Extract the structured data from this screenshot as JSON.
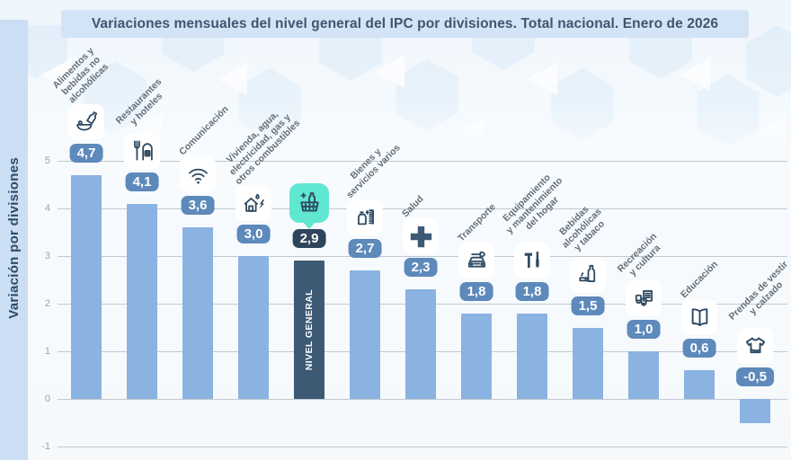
{
  "header": {
    "title": "Variaciones mensuales del nivel general del IPC por divisiones. Total nacional. Enero de 2026"
  },
  "y_axis": {
    "label": "Variación por divisiones",
    "tick_labels": [
      "5",
      "4",
      "3",
      "2",
      "1",
      "0",
      "-1"
    ]
  },
  "chart_data": {
    "type": "bar",
    "title": "Variaciones mensuales del nivel general del IPC por divisiones. Total nacional. Enero de 2026",
    "xlabel": "",
    "ylabel": "Variación por divisiones",
    "ylim": [
      -1.3,
      5.8
    ],
    "yticks": [
      5,
      4,
      3,
      2,
      1,
      0,
      -1
    ],
    "grid": true,
    "legend_position": "none",
    "value_decimal_separator": ",",
    "highlight_category": "Nivel general",
    "categories": [
      "Alimentos y bebidas no alcohólicas",
      "Restaurantes y hoteles",
      "Comunicación",
      "Vivienda, agua, electricidad, gas y otros combustibles",
      "Nivel general",
      "Bienes y servicios varios",
      "Salud",
      "Transporte",
      "Equipamiento y mantenimiento del hogar",
      "Bebidas alcohólicas y tabaco",
      "Recreación y cultura",
      "Educación",
      "Prendas de vestir y calzado"
    ],
    "values": [
      4.7,
      4.1,
      3.6,
      3.0,
      2.9,
      2.7,
      2.3,
      1.8,
      1.8,
      1.5,
      1.0,
      0.6,
      -0.5
    ],
    "bars": [
      {
        "label": "Alimentos y\nbebidas no\nalcohólicas",
        "value": 4.7,
        "display": "4,7",
        "icon": "food-drink-icon",
        "highlight": false
      },
      {
        "label": "Restaurantes\ny hoteles",
        "value": 4.1,
        "display": "4,1",
        "icon": "restaurant-hotel-icon",
        "highlight": false
      },
      {
        "label": "Comunicación",
        "value": 3.6,
        "display": "3,6",
        "icon": "wifi-icon",
        "highlight": false
      },
      {
        "label": "Vivienda, agua,\nelectricidad, gas y\notros combustibles",
        "value": 3.0,
        "display": "3,0",
        "icon": "housing-utilities-icon",
        "highlight": false
      },
      {
        "label": "",
        "bar_text": "NIVEL GENERAL",
        "value": 2.9,
        "display": "2,9",
        "icon": "shopping-basket-icon",
        "highlight": true
      },
      {
        "label": "Bienes y\nservicios varios",
        "value": 2.7,
        "display": "2,7",
        "icon": "goods-services-icon",
        "highlight": false
      },
      {
        "label": "Salud",
        "value": 2.3,
        "display": "2,3",
        "icon": "health-cross-icon",
        "highlight": false
      },
      {
        "label": "Transporte",
        "value": 1.8,
        "display": "1,8",
        "icon": "transport-icon",
        "highlight": false
      },
      {
        "label": "Equipamiento\ny mantenimiento\ndel hogar",
        "value": 1.8,
        "display": "1,8",
        "icon": "home-equipment-icon",
        "highlight": false
      },
      {
        "label": "Bebidas\nalcohólicas\ny tabaco",
        "value": 1.5,
        "display": "1,5",
        "icon": "alcohol-tobacco-icon",
        "highlight": false
      },
      {
        "label": "Recreación\ny cultura",
        "value": 1.0,
        "display": "1,0",
        "icon": "recreation-culture-icon",
        "highlight": false
      },
      {
        "label": "Educación",
        "value": 0.6,
        "display": "0,6",
        "icon": "education-icon",
        "highlight": false
      },
      {
        "label": "Prendas de vestir\ny calzado",
        "value": -0.5,
        "display": "-0,5",
        "icon": "clothing-icon",
        "highlight": false
      }
    ]
  },
  "colors": {
    "bar": "#8ab3e1",
    "bar_highlight": "#3d5a74",
    "badge": "#5d89bb",
    "badge_highlight": "#2f455c",
    "bubble": "#60e7d2",
    "icon_stroke": "#2e4a63",
    "title_bg": "#d2e4f6",
    "title_text": "#3f5670",
    "stripe_bg": "#cbdef4",
    "axis_title_text": "#2d4a68",
    "gridline": "#c0c9d0",
    "tick_text": "#98a4ae",
    "category_text": "#626f7a",
    "pattern_blue": "#d8e9f8"
  }
}
